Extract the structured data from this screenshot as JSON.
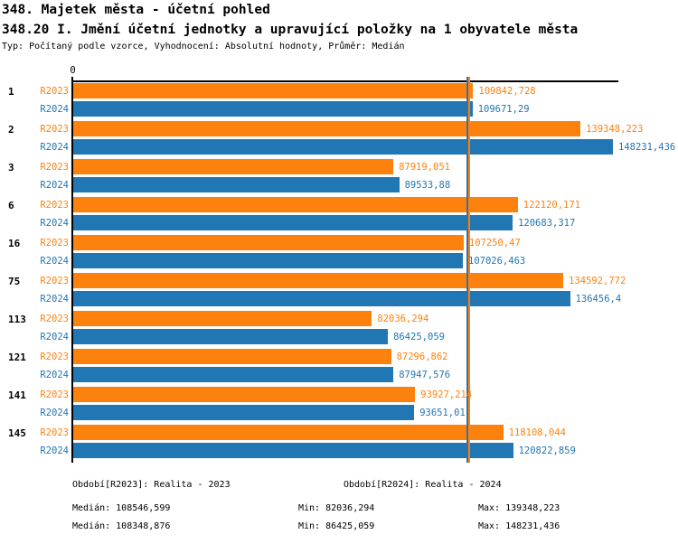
{
  "title": "348. Majetek města - účetní pohled",
  "subtitle": "348.20 I. Jmění účetní jednotky a upravující položky na 1 obyvatele města",
  "meta": "Typ: Počítaný podle vzorce, Vyhodnocení: Absolutní hodnoty, Průměr: Medián",
  "chart_data": {
    "type": "bar",
    "orientation": "horizontal",
    "x_origin_label": "0",
    "xlim": [
      0,
      150000
    ],
    "grid": false,
    "legend_position": "bottom",
    "categories": [
      "1",
      "2",
      "3",
      "6",
      "16",
      "75",
      "113",
      "121",
      "141",
      "145"
    ],
    "series": [
      {
        "name": "R2023",
        "color": "#fd810d",
        "values": [
          109842.728,
          139348.223,
          87919.051,
          122120.171,
          107250.47,
          134592.772,
          82036.294,
          87296.862,
          93927.214,
          118108.044
        ],
        "labels": [
          "109842,728",
          "139348,223",
          "87919,051",
          "122120,171",
          "107250,47",
          "134592,772",
          "82036,294",
          "87296,862",
          "93927,214",
          "118108,044"
        ],
        "median": 108546.599
      },
      {
        "name": "R2024",
        "color": "#2176b4",
        "values": [
          109671.29,
          148231.436,
          89533.88,
          120683.317,
          107026.463,
          136456.4,
          86425.059,
          87947.576,
          93651.01,
          120822.859
        ],
        "labels": [
          "109671,29",
          "148231,436",
          "89533,88",
          "120683,317",
          "107026,463",
          "136456,4",
          "86425,059",
          "87947,576",
          "93651,01",
          "120822,859"
        ],
        "median": 108348.876
      }
    ]
  },
  "legend": {
    "r2023": "Období[R2023]: Realita - 2023",
    "r2024": "Období[R2024]: Realita - 2024"
  },
  "stats": {
    "r2023": {
      "median": "Medián: 108546,599",
      "min": "Min: 82036,294",
      "max": "Max: 139348,223"
    },
    "r2024": {
      "median": "Medián: 108348,876",
      "min": "Min: 86425,059",
      "max": "Max: 148231,436"
    }
  },
  "colors": {
    "series_2023": "#fd810d",
    "series_2024": "#2176b4",
    "median_line": "#3d6f9e",
    "axis": "#000000"
  }
}
